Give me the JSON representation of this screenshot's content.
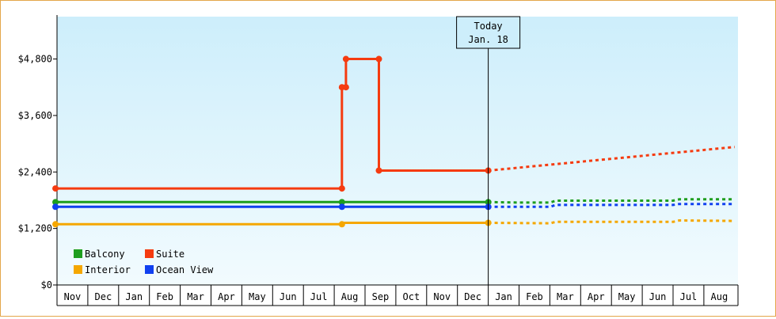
{
  "chart_data": {
    "type": "line",
    "title": "",
    "xlabel": "",
    "ylabel": "",
    "y_tick_labels": [
      "$0",
      "$1,200",
      "$2,400",
      "$3,600",
      "$4,800"
    ],
    "ylim": [
      0,
      5700
    ],
    "month_labels": [
      "Nov",
      "Dec",
      "Jan",
      "Feb",
      "Mar",
      "Apr",
      "May",
      "Jun",
      "Jul",
      "Aug",
      "Sep",
      "Oct",
      "Nov",
      "Dec",
      "Jan",
      "Feb",
      "Mar",
      "Apr",
      "May",
      "Jun",
      "Jul",
      "Aug"
    ],
    "today_marker": {
      "line1": "Today",
      "line2": "Jan. 18",
      "month_index": 14.0
    },
    "legend": [
      {
        "name": "Balcony",
        "color": "#1e9e1e"
      },
      {
        "name": "Suite",
        "color": "#f53b10"
      },
      {
        "name": "Interior",
        "color": "#f5a700"
      },
      {
        "name": "Ocean View",
        "color": "#1040f0"
      }
    ],
    "series": [
      {
        "name": "Suite",
        "color": "#f53b10",
        "history": [
          [
            -0.05,
            2050
          ],
          [
            9.25,
            2050
          ],
          [
            9.25,
            4200
          ],
          [
            9.38,
            4200
          ],
          [
            9.38,
            4800
          ],
          [
            10.45,
            4800
          ],
          [
            10.45,
            2430
          ],
          [
            14.0,
            2430
          ]
        ],
        "markers": [
          [
            -0.05,
            2050
          ],
          [
            9.25,
            2050
          ],
          [
            9.25,
            4200
          ],
          [
            9.38,
            4200
          ],
          [
            9.38,
            4800
          ],
          [
            10.45,
            4800
          ],
          [
            10.45,
            2430
          ],
          [
            14.0,
            2430
          ]
        ],
        "forecast": [
          [
            14.0,
            2430
          ],
          [
            22.0,
            2930
          ]
        ]
      },
      {
        "name": "Balcony",
        "color": "#1e9e1e",
        "history": [
          [
            -0.05,
            1760
          ],
          [
            9.25,
            1760
          ],
          [
            14.0,
            1760
          ]
        ],
        "markers": [
          [
            -0.05,
            1760
          ],
          [
            9.25,
            1760
          ],
          [
            14.0,
            1760
          ]
        ],
        "forecast": [
          [
            14.0,
            1760
          ],
          [
            15.0,
            1750
          ],
          [
            16.0,
            1750
          ],
          [
            16.2,
            1790
          ],
          [
            19.0,
            1790
          ],
          [
            20.0,
            1790
          ],
          [
            20.2,
            1820
          ],
          [
            22.0,
            1820
          ]
        ]
      },
      {
        "name": "Ocean View",
        "color": "#1040f0",
        "history": [
          [
            -0.05,
            1660
          ],
          [
            9.25,
            1660
          ],
          [
            14.0,
            1660
          ]
        ],
        "markers": [
          [
            -0.05,
            1660
          ],
          [
            9.25,
            1660
          ],
          [
            14.0,
            1660
          ]
        ],
        "forecast": [
          [
            14.0,
            1660
          ],
          [
            16.0,
            1660
          ],
          [
            16.2,
            1700
          ],
          [
            20.0,
            1700
          ],
          [
            20.2,
            1720
          ],
          [
            22.0,
            1720
          ]
        ]
      },
      {
        "name": "Interior",
        "color": "#f5a700",
        "history": [
          [
            -0.05,
            1290
          ],
          [
            9.25,
            1290
          ],
          [
            9.3,
            1320
          ],
          [
            14.0,
            1320
          ]
        ],
        "markers": [
          [
            -0.05,
            1290
          ],
          [
            9.25,
            1290
          ],
          [
            14.0,
            1320
          ]
        ],
        "forecast": [
          [
            14.0,
            1320
          ],
          [
            16.0,
            1310
          ],
          [
            16.2,
            1340
          ],
          [
            20.0,
            1340
          ],
          [
            20.2,
            1370
          ],
          [
            22.0,
            1360
          ]
        ]
      }
    ]
  }
}
